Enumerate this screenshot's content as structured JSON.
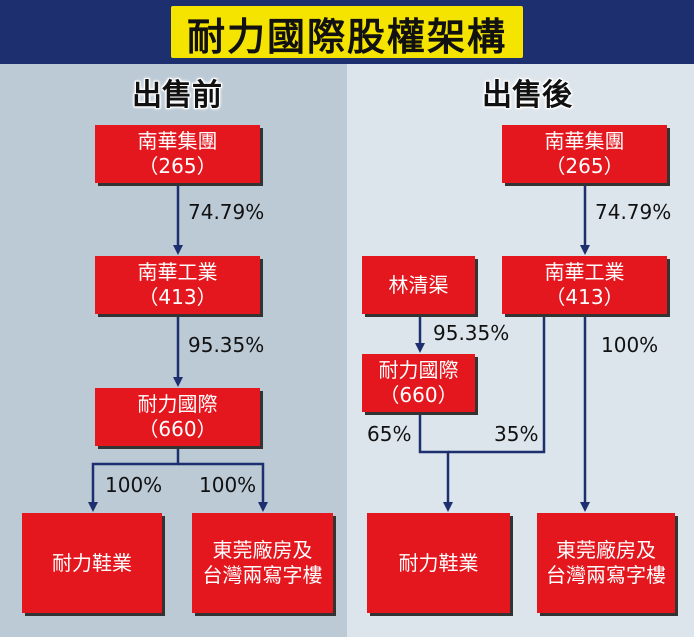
{
  "title": "耐力國際股權架構",
  "before": {
    "heading": "出售前",
    "nanhua_group": {
      "name": "南華集團",
      "code": "（265）"
    },
    "nanhua_industry": {
      "name": "南華工業",
      "code": "（413）"
    },
    "naili_intl": {
      "name": "耐力國際",
      "code": "（660）"
    },
    "naili_shoes": {
      "name": "耐力鞋業"
    },
    "dongguan": {
      "line1": "東莞廠房及",
      "line2": "台灣兩寫字樓"
    },
    "pct_group_to_industry": "74.79%",
    "pct_industry_to_intl": "95.35%",
    "pct_intl_to_shoes": "100%",
    "pct_intl_to_dongguan": "100%"
  },
  "after": {
    "heading": "出售後",
    "nanhua_group": {
      "name": "南華集團",
      "code": "（265）"
    },
    "nanhua_industry": {
      "name": "南華工業",
      "code": "（413）"
    },
    "lin_qingqu": {
      "name": "林清渠"
    },
    "naili_intl": {
      "name": "耐力國際",
      "code": "（660）"
    },
    "naili_shoes": {
      "name": "耐力鞋業"
    },
    "dongguan": {
      "line1": "東莞廠房及",
      "line2": "台灣兩寫字樓"
    },
    "pct_group_to_industry": "74.79%",
    "pct_lin_to_intl": "95.35%",
    "pct_intl_to_shoes": "65%",
    "pct_industry_to_shoes": "35%",
    "pct_industry_to_dongguan": "100%"
  },
  "colors": {
    "box": "#e4161e",
    "arrow": "#1d2f6e",
    "title_bg": "#f5e400",
    "frame": "#1d2f6e"
  }
}
